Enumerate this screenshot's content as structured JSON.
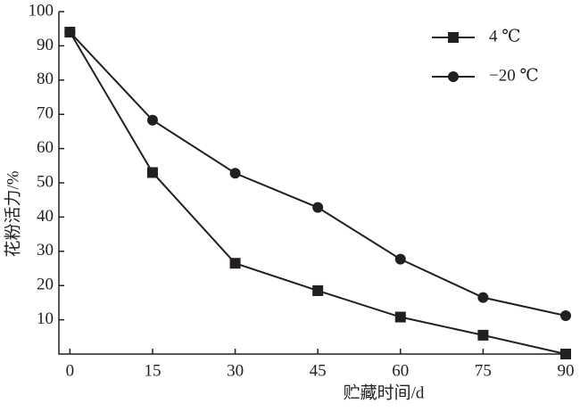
{
  "chart_data": {
    "type": "line",
    "x_label": "贮藏时间/d",
    "y_label": "花粉活力/%",
    "x": [
      0,
      15,
      30,
      45,
      60,
      75,
      90
    ],
    "series": [
      {
        "name": "4 ℃",
        "color": "#231f20",
        "marker": "square",
        "values": [
          94,
          53,
          26.5,
          18.5,
          10.8,
          5.5,
          0
        ]
      },
      {
        "name": "−20 ℃",
        "color": "#231f20",
        "marker": "circle",
        "values": [
          94,
          68.3,
          52.8,
          42.8,
          27.7,
          16.5,
          11.2
        ]
      }
    ],
    "xlim": [
      -2,
      90
    ],
    "xticks": [
      0,
      15,
      30,
      45,
      60,
      75,
      90
    ],
    "ylim": [
      0,
      100
    ],
    "yticks": [
      10,
      20,
      30,
      40,
      50,
      60,
      70,
      80,
      90,
      100
    ],
    "grid": false,
    "legend": "upper right"
  }
}
